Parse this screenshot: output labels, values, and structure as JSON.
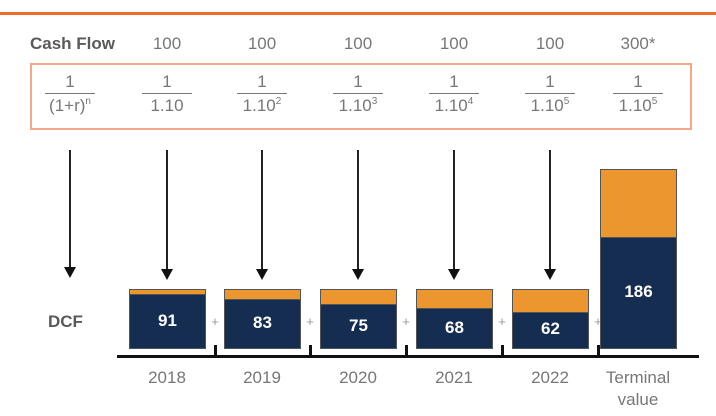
{
  "cash_flow_label": "Cash Flow",
  "dcf_label": "DCF",
  "colors": {
    "accent_line": "#f26a2a",
    "orange": "#ec962f",
    "navy": "#162d52"
  },
  "formula": {
    "num": "1",
    "den": "(1+r)",
    "exp": "n"
  },
  "columns": [
    {
      "cash_flow": "100",
      "num": "1",
      "den": "1.10",
      "exp": "",
      "dcf": "91",
      "year": "2018",
      "plus": "+"
    },
    {
      "cash_flow": "100",
      "num": "1",
      "den": "1.10",
      "exp": "2",
      "dcf": "83",
      "year": "2019",
      "plus": "+"
    },
    {
      "cash_flow": "100",
      "num": "1",
      "den": "1.10",
      "exp": "3",
      "dcf": "75",
      "year": "2020",
      "plus": "+"
    },
    {
      "cash_flow": "100",
      "num": "1",
      "den": "1.10",
      "exp": "4",
      "dcf": "68",
      "year": "2021",
      "plus": "+"
    },
    {
      "cash_flow": "100",
      "num": "1",
      "den": "1.10",
      "exp": "5",
      "dcf": "62",
      "year": "2022",
      "plus": "+"
    },
    {
      "cash_flow": "300*",
      "num": "1",
      "den": "1.10",
      "exp": "5",
      "dcf": "186",
      "year": "Terminal value",
      "plus": ""
    }
  ]
}
